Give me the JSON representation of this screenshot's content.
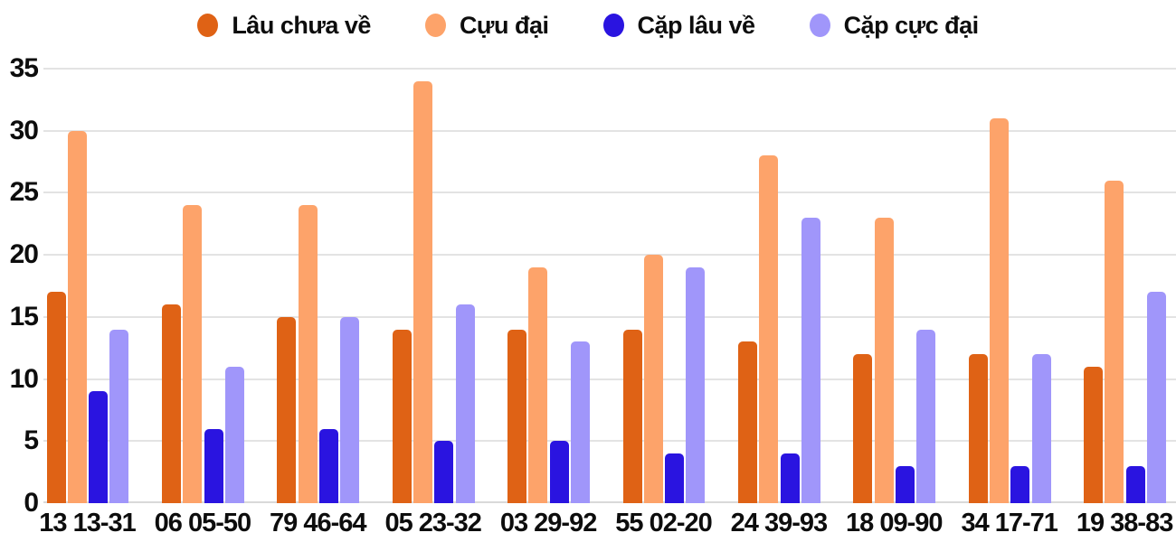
{
  "chart_data": {
    "type": "bar",
    "title": "",
    "xlabel": "",
    "ylabel": "",
    "categories": [
      "13 13-31",
      "06 05-50",
      "79 46-64",
      "05 23-32",
      "03 29-92",
      "55 02-20",
      "24 39-93",
      "18 09-90",
      "34 17-71",
      "19 38-83"
    ],
    "series": [
      {
        "name": "Lâu chưa về",
        "color": "#df6215",
        "values": [
          17,
          16,
          15,
          14,
          14,
          14,
          13,
          12,
          12,
          11
        ]
      },
      {
        "name": "Cựu đại",
        "color": "#fda36a",
        "values": [
          30,
          24,
          24,
          34,
          19,
          20,
          28,
          23,
          31,
          26
        ]
      },
      {
        "name": "Cặp lâu về",
        "color": "#2a14e0",
        "values": [
          9,
          6,
          6,
          5,
          5,
          4,
          4,
          3,
          3,
          3
        ]
      },
      {
        "name": "Cặp cực đại",
        "color": "#a096fa",
        "values": [
          14,
          11,
          15,
          16,
          13,
          19,
          23,
          14,
          12,
          17
        ]
      }
    ],
    "y_ticks": [
      0,
      5,
      10,
      15,
      20,
      25,
      30,
      35
    ],
    "ylim": [
      0,
      35
    ],
    "grid": true,
    "legend_position": "top",
    "background_color": "#ffffff",
    "text_color": "#0d0d0d",
    "gridline_color": "#e3e3e3"
  }
}
